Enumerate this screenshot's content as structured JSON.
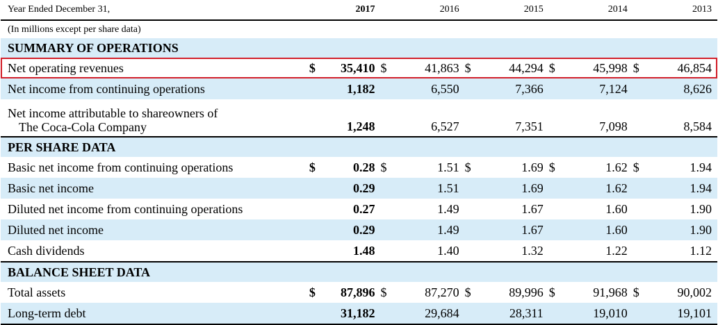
{
  "header": {
    "label": "Year Ended December 31,",
    "years": [
      "2017",
      "2016",
      "2015",
      "2014",
      "2013"
    ]
  },
  "subheader": "(In millions except per share data)",
  "sections": [
    {
      "title": "SUMMARY OF OPERATIONS",
      "rows": [
        {
          "label": "Net operating revenues",
          "dollar": "$",
          "values": [
            "35,410",
            "41,863",
            "44,294",
            "45,998",
            "46,854"
          ]
        },
        {
          "label": "Net income from continuing operations",
          "dollar": "",
          "values": [
            "1,182",
            "6,550",
            "7,366",
            "7,124",
            "8,626"
          ]
        },
        {
          "label_line1": "Net income attributable to shareowners of",
          "label_line2": "The Coca-Cola Company",
          "dollar": "",
          "values": [
            "1,248",
            "6,527",
            "7,351",
            "7,098",
            "8,584"
          ]
        }
      ]
    },
    {
      "title": "PER SHARE DATA",
      "rows": [
        {
          "label": "Basic net income from continuing operations",
          "dollar": "$",
          "values": [
            "0.28",
            "1.51",
            "1.69",
            "1.62",
            "1.94"
          ]
        },
        {
          "label": "Basic net income",
          "dollar": "",
          "values": [
            "0.29",
            "1.51",
            "1.69",
            "1.62",
            "1.94"
          ]
        },
        {
          "label": "Diluted net income from continuing operations",
          "dollar": "",
          "values": [
            "0.27",
            "1.49",
            "1.67",
            "1.60",
            "1.90"
          ]
        },
        {
          "label": "Diluted net income",
          "dollar": "",
          "values": [
            "0.29",
            "1.49",
            "1.67",
            "1.60",
            "1.90"
          ]
        },
        {
          "label": "Cash dividends",
          "dollar": "",
          "values": [
            "1.48",
            "1.40",
            "1.32",
            "1.22",
            "1.12"
          ]
        }
      ]
    },
    {
      "title": "BALANCE SHEET DATA",
      "rows": [
        {
          "label": "Total assets",
          "dollar": "$",
          "values": [
            "87,896",
            "87,270",
            "89,996",
            "91,968",
            "90,002"
          ]
        },
        {
          "label": "Long-term debt",
          "dollar": "",
          "values": [
            "31,182",
            "29,684",
            "28,311",
            "19,010",
            "19,101"
          ]
        }
      ]
    }
  ],
  "colors": {
    "row_blue": "#d7ecf8",
    "highlight": "#d21f2a"
  }
}
